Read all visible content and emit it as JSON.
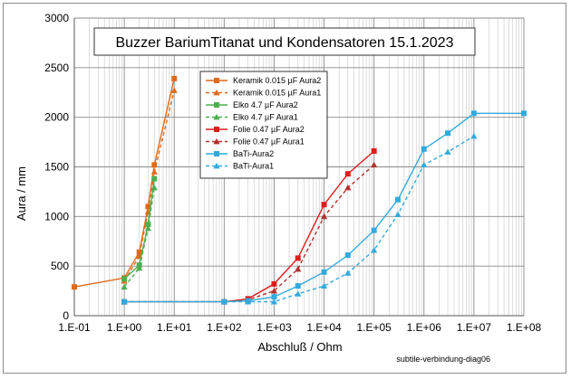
{
  "chart_data": {
    "type": "line",
    "title": "Buzzer  BariumTitanat  und Kondensatoren 15.1.2023",
    "xlabel": "Abschluß / Ohm",
    "ylabel": "Aura / mm",
    "x_scale": "log",
    "xlim": [
      0.1,
      100000000
    ],
    "ylim": [
      0,
      3000
    ],
    "x_ticks": [
      {
        "value": 0.1,
        "label": "1.E-01"
      },
      {
        "value": 1,
        "label": "1.E+00"
      },
      {
        "value": 10,
        "label": "1.E+01"
      },
      {
        "value": 100,
        "label": "1.E+02"
      },
      {
        "value": 1000,
        "label": "1.E+03"
      },
      {
        "value": 10000,
        "label": "1.E+04"
      },
      {
        "value": 100000,
        "label": "1.E+05"
      },
      {
        "value": 1000000,
        "label": "1.E+06"
      },
      {
        "value": 10000000,
        "label": "1.E+07"
      },
      {
        "value": 100000000,
        "label": "1.E+08"
      }
    ],
    "y_ticks": [
      0,
      500,
      1000,
      1500,
      2000,
      2500,
      3000
    ],
    "grid": true,
    "legend_position": "top-center",
    "footnote": "subtile-verbindung-diag06",
    "series": [
      {
        "name": "Keramik 0.015 µF Aura2",
        "color": "#e06a1a",
        "dash": "solid",
        "marker": "square",
        "points": [
          [
            0.1,
            290
          ],
          [
            1,
            380
          ],
          [
            2,
            640
          ],
          [
            3,
            1100
          ],
          [
            4,
            1520
          ],
          [
            10,
            2390
          ]
        ]
      },
      {
        "name": "Keramik 0.015 µF Aura1",
        "color": "#e06a1a",
        "dash": "dashed",
        "marker": "triangle",
        "points": [
          [
            1,
            350
          ],
          [
            2,
            600
          ],
          [
            3,
            1050
          ],
          [
            4,
            1450
          ],
          [
            10,
            2270
          ]
        ]
      },
      {
        "name": "Elko 4.7 µF Aura2",
        "color": "#4caf50",
        "dash": "solid",
        "marker": "square",
        "points": [
          [
            1,
            370
          ],
          [
            2,
            510
          ],
          [
            3,
            920
          ],
          [
            4,
            1380
          ]
        ]
      },
      {
        "name": "Elko 4.7 µF Aura1",
        "color": "#4caf50",
        "dash": "dashed",
        "marker": "triangle",
        "points": [
          [
            1,
            290
          ],
          [
            2,
            480
          ],
          [
            3,
            880
          ],
          [
            4,
            1290
          ]
        ]
      },
      {
        "name": "Folie 0.47 µF Aura2",
        "color": "#e01c1c",
        "dash": "solid",
        "marker": "square",
        "points": [
          [
            1,
            140
          ],
          [
            100,
            140
          ],
          [
            300,
            170
          ],
          [
            1000,
            320
          ],
          [
            3000,
            580
          ],
          [
            10000,
            1120
          ],
          [
            30000,
            1430
          ],
          [
            100000,
            1660
          ]
        ]
      },
      {
        "name": "Folie 0.47 µF Aura1",
        "color": "#b03030",
        "dash": "dashed",
        "marker": "triangle",
        "points": [
          [
            1,
            140
          ],
          [
            100,
            140
          ],
          [
            300,
            160
          ],
          [
            1000,
            250
          ],
          [
            3000,
            470
          ],
          [
            10000,
            1000
          ],
          [
            30000,
            1290
          ],
          [
            100000,
            1520
          ]
        ]
      },
      {
        "name": "BaTi-Aura2",
        "color": "#33aadd",
        "dash": "solid",
        "marker": "square",
        "points": [
          [
            1,
            140
          ],
          [
            100,
            140
          ],
          [
            300,
            150
          ],
          [
            1000,
            190
          ],
          [
            3000,
            300
          ],
          [
            10000,
            440
          ],
          [
            30000,
            610
          ],
          [
            100000,
            860
          ],
          [
            300000,
            1170
          ],
          [
            1000000,
            1680
          ],
          [
            3000000,
            1840
          ],
          [
            10000000,
            2040
          ],
          [
            100000000,
            2040
          ]
        ]
      },
      {
        "name": "BaTi-Aura1",
        "color": "#33aadd",
        "dash": "dashed",
        "marker": "triangle",
        "points": [
          [
            1,
            140
          ],
          [
            100,
            140
          ],
          [
            300,
            140
          ],
          [
            1000,
            140
          ],
          [
            3000,
            220
          ],
          [
            10000,
            300
          ],
          [
            30000,
            430
          ],
          [
            100000,
            660
          ],
          [
            300000,
            1020
          ],
          [
            1000000,
            1520
          ],
          [
            3000000,
            1650
          ],
          [
            10000000,
            1810
          ]
        ]
      }
    ]
  }
}
